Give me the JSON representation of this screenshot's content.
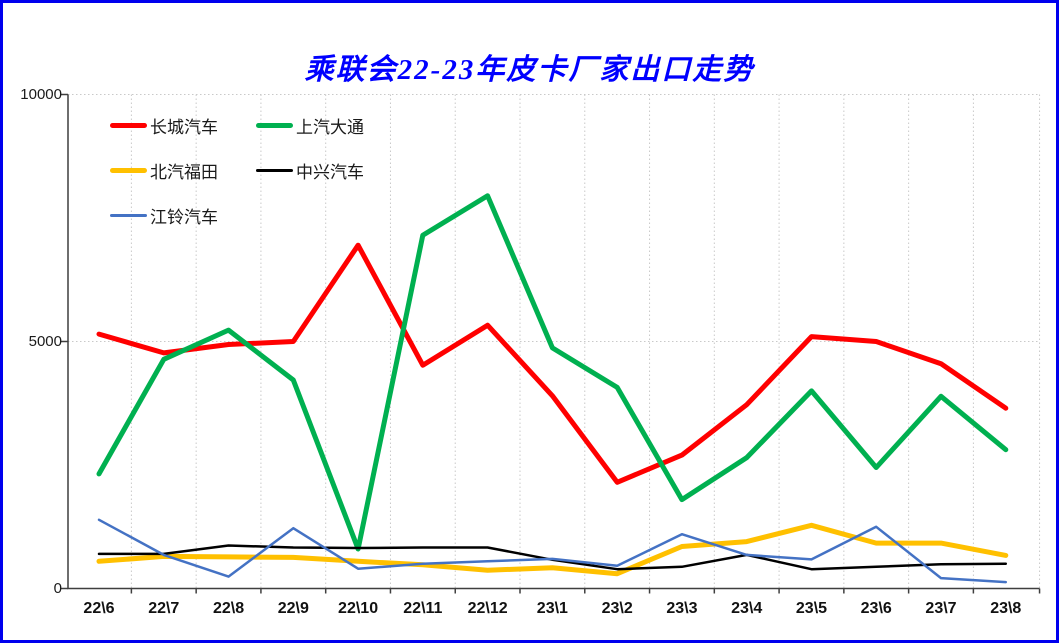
{
  "frame": {
    "border_color": "#0000ee",
    "background": "#ffffff"
  },
  "title": {
    "text": "乘联会22-23年皮卡厂家出口走势",
    "color": "#0000ff"
  },
  "chart_data": {
    "type": "line",
    "title": "乘联会22-23年皮卡厂家出口走势",
    "xlabel": "",
    "ylabel": "",
    "ylim": [
      0,
      10000
    ],
    "y_ticks": [
      0,
      5000,
      10000
    ],
    "grid": "dotted",
    "legend_position": "inside-top-left",
    "categories": [
      "22\\6",
      "22\\7",
      "22\\8",
      "22\\9",
      "22\\10",
      "22\\11",
      "22\\12",
      "23\\1",
      "23\\2",
      "23\\3",
      "23\\4",
      "23\\5",
      "23\\6",
      "23\\7",
      "23\\8"
    ],
    "series": [
      {
        "name": "长城汽车",
        "color": "#ff0000",
        "line_width": 5,
        "values": [
          5150,
          4770,
          4940,
          5000,
          6950,
          4520,
          5330,
          3900,
          2150,
          2700,
          3720,
          5100,
          5000,
          4550,
          3650
        ]
      },
      {
        "name": "上汽大通",
        "color": "#00b050",
        "line_width": 5,
        "values": [
          2320,
          4640,
          5230,
          4220,
          800,
          7150,
          7950,
          4870,
          4070,
          1800,
          2650,
          4000,
          2450,
          3890,
          2810
        ]
      },
      {
        "name": "北汽福田",
        "color": "#ffc000",
        "line_width": 5,
        "values": [
          550,
          650,
          640,
          630,
          550,
          480,
          370,
          420,
          300,
          850,
          950,
          1280,
          920,
          920,
          670
        ]
      },
      {
        "name": "中兴汽车",
        "color": "#000000",
        "line_width": 2.5,
        "values": [
          700,
          700,
          870,
          830,
          820,
          830,
          830,
          580,
          390,
          440,
          680,
          390,
          440,
          490,
          500
        ]
      },
      {
        "name": "江铃汽车",
        "color": "#4472c4",
        "line_width": 2.5,
        "values": [
          1390,
          680,
          240,
          1220,
          400,
          500,
          550,
          600,
          460,
          1100,
          680,
          590,
          1250,
          210,
          130
        ]
      }
    ]
  }
}
